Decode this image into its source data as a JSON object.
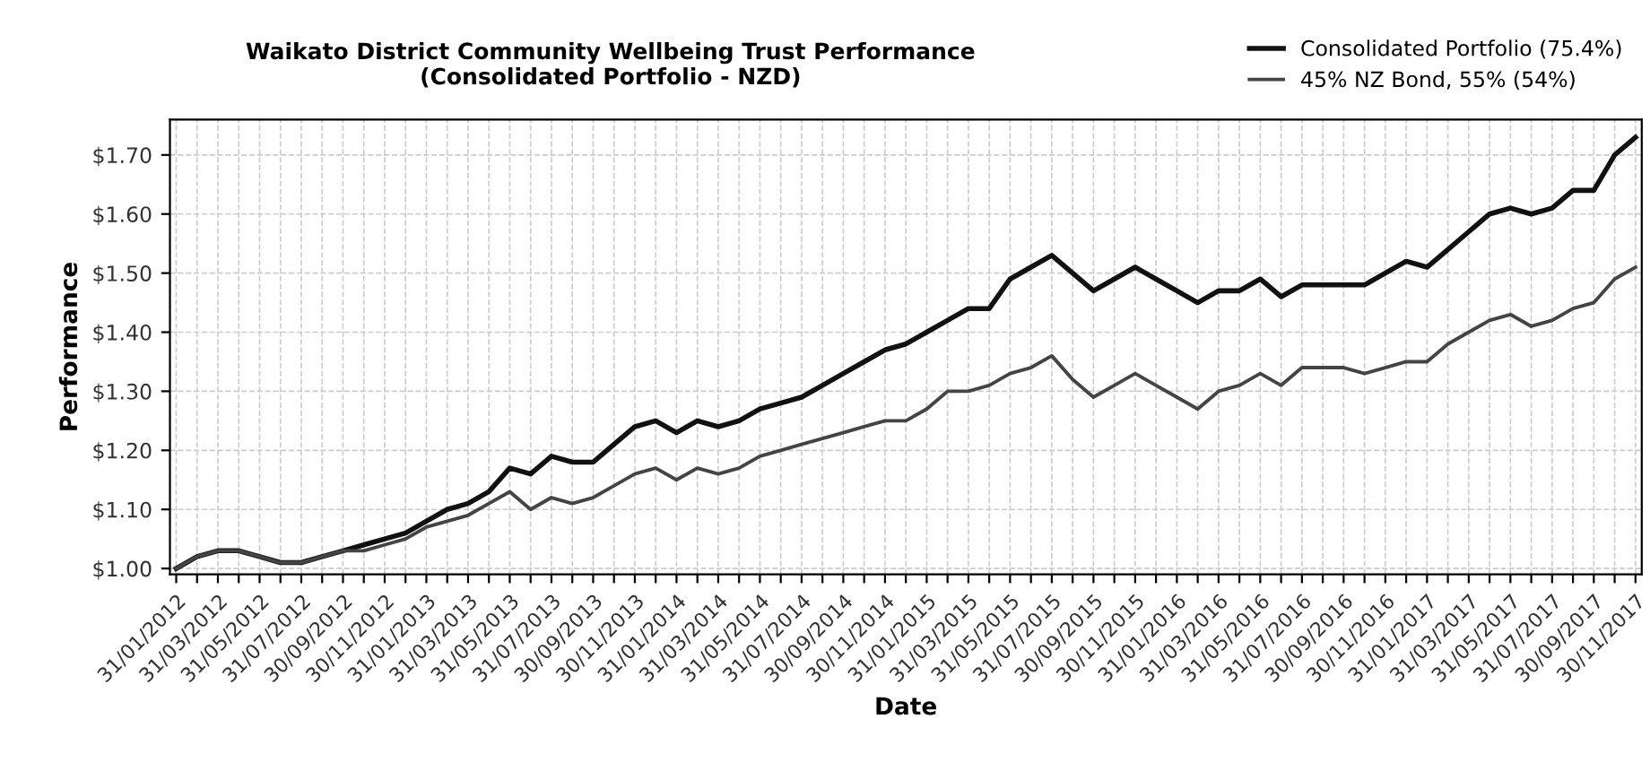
{
  "chart_data": {
    "type": "line",
    "title": "Waikato District Community Wellbeing Trust Performance\n(Consolidated Portfolio - NZD)",
    "xlabel": "Date",
    "ylabel": "Performance",
    "categories": [
      "31/01/2012",
      null,
      "31/03/2012",
      null,
      "31/05/2012",
      null,
      "31/07/2012",
      null,
      "30/09/2012",
      null,
      "30/11/2012",
      null,
      "31/01/2013",
      null,
      "31/03/2013",
      null,
      "31/05/2013",
      null,
      "31/07/2013",
      null,
      "30/09/2013",
      null,
      "30/11/2013",
      null,
      "31/01/2014",
      null,
      "31/03/2014",
      null,
      "31/05/2014",
      null,
      "31/07/2014",
      null,
      "30/09/2014",
      null,
      "30/11/2014",
      null,
      "31/01/2015",
      null,
      "31/03/2015",
      null,
      "31/05/2015",
      null,
      "31/07/2015",
      null,
      "30/09/2015",
      null,
      "30/11/2015",
      null,
      "31/01/2016",
      null,
      "31/03/2016",
      null,
      "31/05/2016",
      null,
      "31/07/2016",
      null,
      "30/09/2016",
      null,
      "30/11/2016",
      null,
      "31/01/2017",
      null,
      "31/03/2017",
      null,
      "31/05/2017",
      null,
      "31/07/2017",
      null,
      "30/09/2017",
      null,
      "30/11/2017"
    ],
    "series": [
      {
        "name": "Consolidated Portfolio (75.4%)",
        "color": "#111111",
        "values": [
          1.0,
          1.02,
          1.03,
          1.03,
          1.02,
          1.01,
          1.01,
          1.02,
          1.03,
          1.04,
          1.05,
          1.06,
          1.08,
          1.1,
          1.11,
          1.13,
          1.17,
          1.16,
          1.19,
          1.18,
          1.18,
          1.21,
          1.24,
          1.25,
          1.23,
          1.25,
          1.24,
          1.25,
          1.27,
          1.28,
          1.29,
          1.31,
          1.33,
          1.35,
          1.37,
          1.38,
          1.4,
          1.42,
          1.44,
          1.44,
          1.49,
          1.51,
          1.53,
          1.5,
          1.47,
          1.49,
          1.51,
          1.49,
          1.47,
          1.45,
          1.47,
          1.47,
          1.49,
          1.46,
          1.48,
          1.48,
          1.48,
          1.48,
          1.5,
          1.52,
          1.51,
          1.54,
          1.57,
          1.6,
          1.61,
          1.6,
          1.61,
          1.64,
          1.64,
          1.7,
          1.73
        ]
      },
      {
        "name": "45% NZ Bond, 55% (54%)",
        "color": "#444444",
        "values": [
          1.0,
          1.02,
          1.03,
          1.03,
          1.02,
          1.01,
          1.01,
          1.02,
          1.03,
          1.03,
          1.04,
          1.05,
          1.07,
          1.08,
          1.09,
          1.11,
          1.13,
          1.1,
          1.12,
          1.11,
          1.12,
          1.14,
          1.16,
          1.17,
          1.15,
          1.17,
          1.16,
          1.17,
          1.19,
          1.2,
          1.21,
          1.22,
          1.23,
          1.24,
          1.25,
          1.25,
          1.27,
          1.3,
          1.3,
          1.31,
          1.33,
          1.34,
          1.36,
          1.32,
          1.29,
          1.31,
          1.33,
          1.31,
          1.29,
          1.27,
          1.3,
          1.31,
          1.33,
          1.31,
          1.34,
          1.34,
          1.34,
          1.33,
          1.34,
          1.35,
          1.35,
          1.38,
          1.4,
          1.42,
          1.43,
          1.41,
          1.42,
          1.44,
          1.45,
          1.49,
          1.51
        ]
      }
    ],
    "ylim": [
      0.99,
      1.76
    ],
    "yticks": [
      {
        "value": 1.0,
        "label": "$1.00"
      },
      {
        "value": 1.1,
        "label": "$1.10"
      },
      {
        "value": 1.2,
        "label": "$1.20"
      },
      {
        "value": 1.3,
        "label": "$1.30"
      },
      {
        "value": 1.4,
        "label": "$1.40"
      },
      {
        "value": 1.5,
        "label": "$1.50"
      },
      {
        "value": 1.6,
        "label": "$1.60"
      },
      {
        "value": 1.7,
        "label": "$1.70"
      }
    ],
    "grid": true,
    "legend": "top right",
    "marker": "none",
    "line_style": "solid"
  }
}
